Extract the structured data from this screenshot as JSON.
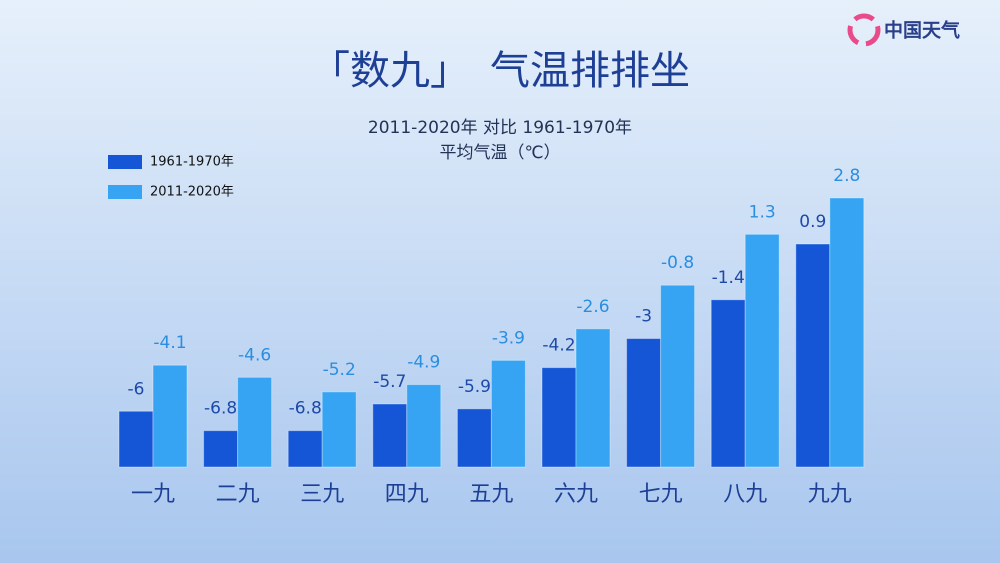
{
  "logo": "中国天气",
  "chart_data": {
    "type": "bar",
    "title": "「数九」　气温排排坐",
    "subtitle": "2011-2020年  对比  1961-1970年",
    "unit_label": "平均气温（℃）",
    "categories": [
      "一九",
      "二九",
      "三九",
      "四九",
      "五九",
      "六九",
      "七九",
      "八九",
      "九九"
    ],
    "series": [
      {
        "name": "1961-1970年",
        "color": "#1456d6",
        "values": [
          -6,
          -6.8,
          -6.8,
          -5.7,
          -5.9,
          -4.2,
          -3,
          -1.4,
          0.9
        ]
      },
      {
        "name": "2011-2020年",
        "color": "#36a4f2",
        "values": [
          -4.1,
          -4.6,
          -5.2,
          -4.9,
          -3.9,
          -2.6,
          -0.8,
          1.3,
          2.8
        ]
      }
    ],
    "ylim": [
      -8.3,
      3.5
    ],
    "legend": "upper left"
  }
}
